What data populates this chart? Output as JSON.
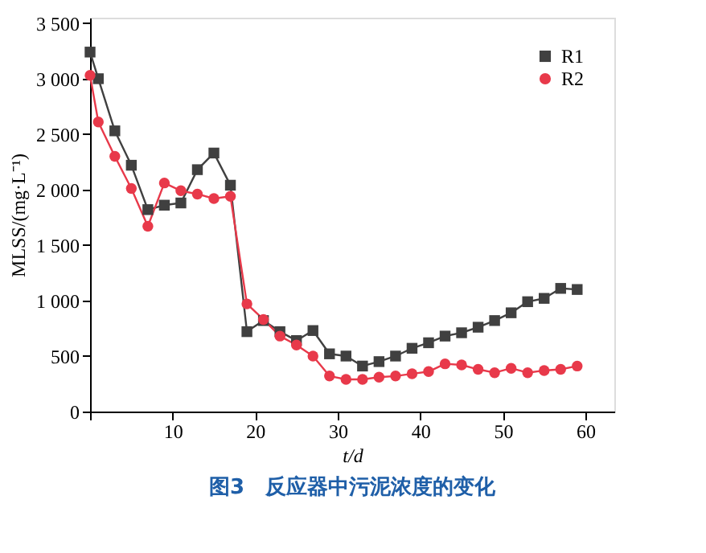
{
  "chart_data": {
    "type": "line",
    "xlabel": "t/d",
    "ylabel": "MLSS/(mg·L⁻¹)",
    "x": [
      0,
      1,
      3,
      5,
      7,
      9,
      11,
      13,
      15,
      17,
      19,
      21,
      23,
      25,
      27,
      29,
      31,
      33,
      35,
      37,
      39,
      41,
      43,
      45,
      47,
      49,
      51,
      53,
      55,
      57,
      59
    ],
    "series": [
      {
        "name": "R1",
        "color": "#404040",
        "marker": "square",
        "values": [
          3240,
          3000,
          2530,
          2220,
          1820,
          1860,
          1880,
          2180,
          2330,
          2040,
          720,
          820,
          720,
          640,
          730,
          520,
          500,
          410,
          450,
          500,
          570,
          620,
          680,
          710,
          760,
          820,
          890,
          990,
          1020,
          1110,
          1100
        ]
      },
      {
        "name": "R2",
        "color": "#e8394a",
        "marker": "circle",
        "values": [
          3030,
          2610,
          2300,
          2010,
          1670,
          2060,
          1990,
          1960,
          1920,
          1940,
          970,
          830,
          680,
          600,
          500,
          320,
          290,
          290,
          310,
          320,
          340,
          360,
          430,
          420,
          380,
          350,
          390,
          350,
          370,
          380,
          410
        ]
      }
    ],
    "xlim": [
      0,
      63.5
    ],
    "ylim": [
      0,
      3550
    ],
    "xticks": [
      {
        "value": 0,
        "label": null
      },
      10,
      20,
      30,
      40,
      50,
      60
    ],
    "yticks": [
      0,
      500,
      {
        "value": 1000,
        "label": "1 000"
      },
      {
        "value": 1500,
        "label": "1 500"
      },
      {
        "value": 2000,
        "label": "2 000"
      },
      {
        "value": 2500,
        "label": "2 500"
      },
      {
        "value": 3000,
        "label": "3 000"
      },
      {
        "value": 3500,
        "label": "3 500"
      }
    ],
    "grid": false,
    "legend": "top right",
    "line_style": "solid",
    "annotations": [
      "图3　反应器中污泥浓度的变化"
    ]
  }
}
